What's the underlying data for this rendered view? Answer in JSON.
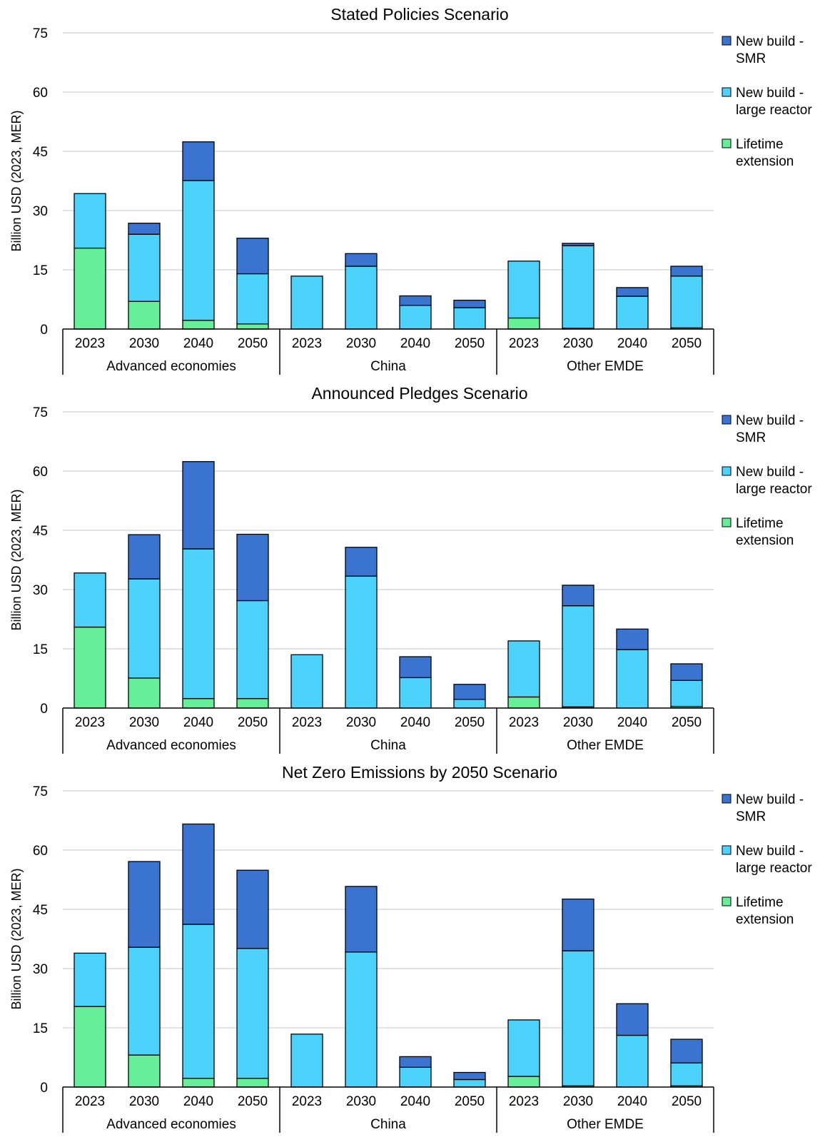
{
  "colors": {
    "lifetime_extension": "#66ee99",
    "large_reactor": "#4dd2fc",
    "smr": "#3a74d0",
    "grid": "#d9d9d9",
    "axis": "#000000"
  },
  "chart_data": [
    {
      "type": "bar",
      "stacked": true,
      "title": "Stated Policies Scenario",
      "ylabel": "Billion USD (2023, MER)",
      "ylim": [
        0,
        75
      ],
      "yticks": [
        0,
        15,
        30,
        45,
        60,
        75
      ],
      "grid": true,
      "legend_position": "right",
      "groups": [
        {
          "name": "Advanced economies",
          "categories": [
            "2023",
            "2030",
            "2040",
            "2050"
          ]
        },
        {
          "name": "China",
          "categories": [
            "2023",
            "2030",
            "2040",
            "2050"
          ]
        },
        {
          "name": "Other EMDE",
          "categories": [
            "2023",
            "2030",
            "2040",
            "2050"
          ]
        }
      ],
      "series": [
        {
          "name": "Lifetime extension",
          "color_key": "lifetime_extension",
          "values": [
            20.5,
            7.0,
            2.2,
            1.3,
            0,
            0,
            0,
            0,
            2.8,
            0.2,
            0,
            0.3
          ]
        },
        {
          "name": "New build - large reactor",
          "color_key": "large_reactor",
          "values": [
            13.8,
            17.0,
            35.4,
            12.7,
            13.4,
            15.9,
            6.0,
            5.4,
            14.4,
            20.9,
            8.3,
            13.1
          ]
        },
        {
          "name": "New build - SMR",
          "color_key": "smr",
          "values": [
            0,
            2.8,
            9.8,
            9.0,
            0,
            3.2,
            2.4,
            1.9,
            0,
            0.6,
            2.2,
            2.5
          ]
        }
      ]
    },
    {
      "type": "bar",
      "stacked": true,
      "title": "Announced Pledges Scenario",
      "ylabel": "Billion USD (2023, MER)",
      "ylim": [
        0,
        75
      ],
      "yticks": [
        0,
        15,
        30,
        45,
        60,
        75
      ],
      "grid": true,
      "legend_position": "right",
      "groups": [
        {
          "name": "Advanced economies",
          "categories": [
            "2023",
            "2030",
            "2040",
            "2050"
          ]
        },
        {
          "name": "China",
          "categories": [
            "2023",
            "2030",
            "2040",
            "2050"
          ]
        },
        {
          "name": "Other EMDE",
          "categories": [
            "2023",
            "2030",
            "2040",
            "2050"
          ]
        }
      ],
      "series": [
        {
          "name": "Lifetime extension",
          "color_key": "lifetime_extension",
          "values": [
            20.5,
            7.6,
            2.4,
            2.4,
            0,
            0,
            0,
            0,
            2.8,
            0.3,
            0,
            0.4
          ]
        },
        {
          "name": "New build - large reactor",
          "color_key": "large_reactor",
          "values": [
            13.7,
            25.1,
            37.9,
            24.8,
            13.5,
            33.4,
            7.7,
            2.2,
            14.2,
            25.6,
            14.8,
            6.6
          ]
        },
        {
          "name": "New build - SMR",
          "color_key": "smr",
          "values": [
            0,
            11.2,
            22.1,
            16.8,
            0,
            7.3,
            5.3,
            3.8,
            0,
            5.2,
            5.2,
            4.2
          ]
        }
      ]
    },
    {
      "type": "bar",
      "stacked": true,
      "title": "Net Zero Emissions by 2050 Scenario",
      "ylabel": "Billion USD (2023, MER)",
      "ylim": [
        0,
        75
      ],
      "yticks": [
        0,
        15,
        30,
        45,
        60,
        75
      ],
      "grid": true,
      "legend_position": "right",
      "groups": [
        {
          "name": "Advanced economies",
          "categories": [
            "2023",
            "2030",
            "2040",
            "2050"
          ]
        },
        {
          "name": "China",
          "categories": [
            "2023",
            "2030",
            "2040",
            "2050"
          ]
        },
        {
          "name": "Other EMDE",
          "categories": [
            "2023",
            "2030",
            "2040",
            "2050"
          ]
        }
      ],
      "series": [
        {
          "name": "Lifetime extension",
          "color_key": "lifetime_extension",
          "values": [
            20.4,
            8.1,
            2.2,
            2.2,
            0,
            0,
            0,
            0,
            2.7,
            0.3,
            0,
            0.3
          ]
        },
        {
          "name": "New build - large reactor",
          "color_key": "large_reactor",
          "values": [
            13.5,
            27.3,
            39.0,
            32.9,
            13.4,
            34.2,
            5.0,
            1.9,
            14.3,
            34.2,
            13.1,
            5.8
          ]
        },
        {
          "name": "New build - SMR",
          "color_key": "smr",
          "values": [
            0,
            21.7,
            25.4,
            19.8,
            0,
            16.6,
            2.7,
            1.8,
            0,
            13.1,
            8.0,
            6.0
          ]
        }
      ]
    }
  ]
}
